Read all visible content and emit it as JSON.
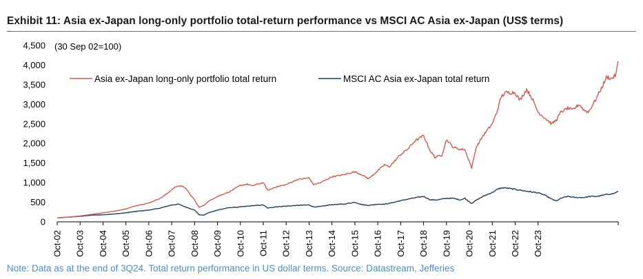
{
  "title": "Exhibit 11: Asia ex-Japan long-only portfolio total-return performance vs MSCI AC Asia ex-Japan (US$ terms)",
  "note": "Note: Data as at the end of 3Q24. Total return performance in US dollar terms. Source: Datastream, Jefferies",
  "colors": {
    "portfolio": "#d9584a",
    "msci": "#1f3d5c",
    "axis": "#000000"
  },
  "chart_data": {
    "type": "line",
    "annotation": "(30 Sep 02=100)",
    "ylim": [
      0,
      4500
    ],
    "yticks": [
      "4,500",
      "4,000",
      "3,500",
      "3,000",
      "2,500",
      "2,000",
      "1,500",
      "1,000",
      "500",
      "0"
    ],
    "ytick_values": [
      4500,
      4000,
      3500,
      3000,
      2500,
      2000,
      1500,
      1000,
      500,
      0
    ],
    "xticks": [
      "Oct-02",
      "Oct-03",
      "Oct-04",
      "Oct-05",
      "Oct-06",
      "Oct-07",
      "Oct-08",
      "Oct-09",
      "Oct-10",
      "Oct-11",
      "Oct-12",
      "Oct-13",
      "Oct-14",
      "Oct-15",
      "Oct-16",
      "Oct-17",
      "Oct-18",
      "Oct-19",
      "Oct-20",
      "Oct-21",
      "Oct-22",
      "Oct-23"
    ],
    "x_unit": "years since Sep 2002",
    "legend": {
      "placement": "top-left"
    },
    "series": [
      {
        "name": "Asia ex-Japan long-only portfolio total return",
        "color": "#d9584a",
        "points": [
          [
            0,
            100
          ],
          [
            0.5,
            120
          ],
          [
            1,
            150
          ],
          [
            1.5,
            190
          ],
          [
            2,
            230
          ],
          [
            2.5,
            270
          ],
          [
            3,
            330
          ],
          [
            3.5,
            420
          ],
          [
            4,
            480
          ],
          [
            4.5,
            600
          ],
          [
            4.8,
            720
          ],
          [
            5,
            820
          ],
          [
            5.2,
            900
          ],
          [
            5.4,
            920
          ],
          [
            5.6,
            870
          ],
          [
            5.8,
            700
          ],
          [
            6,
            560
          ],
          [
            6.1,
            450
          ],
          [
            6.2,
            370
          ],
          [
            6.4,
            420
          ],
          [
            6.6,
            520
          ],
          [
            7,
            650
          ],
          [
            7.5,
            760
          ],
          [
            8,
            930
          ],
          [
            8.3,
            960
          ],
          [
            8.5,
            920
          ],
          [
            9,
            1000
          ],
          [
            9.2,
            800
          ],
          [
            9.5,
            880
          ],
          [
            10,
            950
          ],
          [
            10.5,
            1080
          ],
          [
            11,
            1120
          ],
          [
            11.2,
            950
          ],
          [
            11.5,
            1000
          ],
          [
            12,
            1150
          ],
          [
            12.5,
            1200
          ],
          [
            13,
            1280
          ],
          [
            13.3,
            1200
          ],
          [
            13.6,
            1100
          ],
          [
            14,
            1300
          ],
          [
            14.3,
            1460
          ],
          [
            14.5,
            1400
          ],
          [
            15,
            1720
          ],
          [
            15.3,
            1850
          ],
          [
            15.6,
            2050
          ],
          [
            16,
            2200
          ],
          [
            16.3,
            1800
          ],
          [
            16.5,
            1650
          ],
          [
            16.8,
            1700
          ],
          [
            17,
            2100
          ],
          [
            17.3,
            1900
          ],
          [
            17.6,
            1850
          ],
          [
            17.8,
            1850
          ],
          [
            18.1,
            1380
          ],
          [
            18.3,
            1900
          ],
          [
            18.6,
            2200
          ],
          [
            19,
            2500
          ],
          [
            19.2,
            2800
          ],
          [
            19.4,
            3200
          ],
          [
            19.6,
            3300
          ],
          [
            20,
            3300
          ],
          [
            20.2,
            3100
          ],
          [
            20.5,
            3380
          ],
          [
            20.7,
            3200
          ],
          [
            21,
            2800
          ],
          [
            21.3,
            2650
          ],
          [
            21.6,
            2500
          ],
          [
            21.8,
            2600
          ],
          [
            22,
            2800
          ],
          [
            22.3,
            2900
          ],
          [
            22.5,
            2850
          ],
          [
            22.8,
            3000
          ],
          [
            23,
            2850
          ],
          [
            23.2,
            2800
          ],
          [
            23.5,
            3100
          ],
          [
            23.8,
            3450
          ],
          [
            24,
            3700
          ],
          [
            24.2,
            3650
          ],
          [
            24.4,
            3750
          ],
          [
            24.5,
            4100
          ]
        ]
      },
      {
        "name": "MSCI AC Asia ex-Japan total return",
        "color": "#1f3d5c",
        "points": [
          [
            0,
            100
          ],
          [
            0.5,
            120
          ],
          [
            1,
            140
          ],
          [
            1.5,
            170
          ],
          [
            2,
            180
          ],
          [
            2.5,
            200
          ],
          [
            3,
            230
          ],
          [
            3.5,
            270
          ],
          [
            4,
            300
          ],
          [
            4.5,
            350
          ],
          [
            5,
            430
          ],
          [
            5.3,
            450
          ],
          [
            5.6,
            380
          ],
          [
            6,
            300
          ],
          [
            6.2,
            180
          ],
          [
            6.4,
            170
          ],
          [
            6.6,
            230
          ],
          [
            7,
            300
          ],
          [
            7.5,
            360
          ],
          [
            8,
            380
          ],
          [
            8.5,
            410
          ],
          [
            9,
            430
          ],
          [
            9.2,
            350
          ],
          [
            9.5,
            380
          ],
          [
            10,
            400
          ],
          [
            10.5,
            420
          ],
          [
            11,
            430
          ],
          [
            11.2,
            380
          ],
          [
            11.5,
            390
          ],
          [
            12,
            440
          ],
          [
            12.5,
            450
          ],
          [
            13,
            500
          ],
          [
            13.3,
            440
          ],
          [
            13.6,
            420
          ],
          [
            14,
            450
          ],
          [
            14.3,
            450
          ],
          [
            14.5,
            470
          ],
          [
            15,
            540
          ],
          [
            15.5,
            600
          ],
          [
            16,
            650
          ],
          [
            16.3,
            560
          ],
          [
            16.6,
            560
          ],
          [
            17,
            600
          ],
          [
            17.3,
            600
          ],
          [
            17.6,
            560
          ],
          [
            17.8,
            600
          ],
          [
            18.1,
            470
          ],
          [
            18.3,
            550
          ],
          [
            18.6,
            650
          ],
          [
            19,
            750
          ],
          [
            19.3,
            850
          ],
          [
            19.5,
            870
          ],
          [
            20,
            830
          ],
          [
            20.5,
            780
          ],
          [
            21,
            740
          ],
          [
            21.3,
            680
          ],
          [
            21.6,
            580
          ],
          [
            21.8,
            530
          ],
          [
            22,
            600
          ],
          [
            22.3,
            650
          ],
          [
            22.6,
            620
          ],
          [
            23,
            620
          ],
          [
            23.3,
            650
          ],
          [
            23.6,
            650
          ],
          [
            24,
            700
          ],
          [
            24.3,
            720
          ],
          [
            24.5,
            780
          ]
        ]
      }
    ]
  }
}
